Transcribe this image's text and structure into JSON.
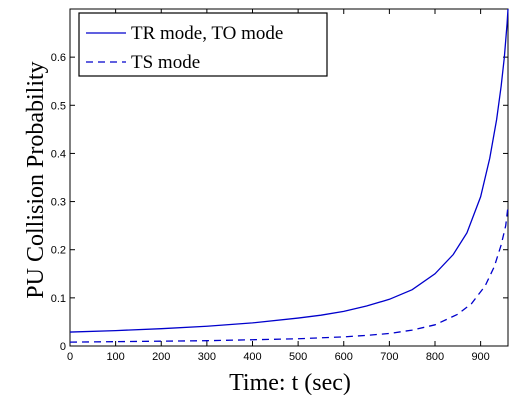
{
  "chart_data": {
    "type": "line",
    "title": "",
    "xlabel": "Time: t (sec)",
    "ylabel": "PU Collision Probability",
    "xlim": [
      0,
      960
    ],
    "ylim": [
      0,
      0.7
    ],
    "xticks": [
      0,
      100,
      200,
      300,
      400,
      500,
      600,
      700,
      800,
      900
    ],
    "yticks": [
      0,
      0.1,
      0.2,
      0.3,
      0.4,
      0.5,
      0.6
    ],
    "xtick_labels": [
      "0",
      "100",
      "200",
      "300",
      "400",
      "500",
      "600",
      "700",
      "800",
      "900"
    ],
    "ytick_labels": [
      "0",
      "0.1",
      "0.2",
      "0.3",
      "0.4",
      "0.5",
      "0.6"
    ],
    "grid": false,
    "legend_position": "top-left",
    "color": "#0000cc",
    "series": [
      {
        "name": "TR mode, TO mode",
        "style": "solid",
        "x": [
          0,
          100,
          200,
          300,
          400,
          500,
          550,
          600,
          650,
          700,
          750,
          800,
          840,
          870,
          900,
          920,
          935,
          945,
          952,
          958,
          960
        ],
        "y": [
          0.029,
          0.032,
          0.036,
          0.041,
          0.048,
          0.058,
          0.064,
          0.072,
          0.083,
          0.097,
          0.117,
          0.15,
          0.19,
          0.235,
          0.31,
          0.39,
          0.47,
          0.54,
          0.6,
          0.67,
          0.7
        ]
      },
      {
        "name": "TS mode",
        "style": "dashed",
        "x": [
          0,
          100,
          200,
          300,
          400,
          500,
          600,
          650,
          700,
          750,
          800,
          850,
          880,
          910,
          930,
          945,
          955,
          960
        ],
        "y": [
          0.008,
          0.009,
          0.01,
          0.011,
          0.013,
          0.015,
          0.019,
          0.022,
          0.026,
          0.033,
          0.044,
          0.066,
          0.088,
          0.125,
          0.165,
          0.21,
          0.25,
          0.29
        ]
      }
    ]
  }
}
